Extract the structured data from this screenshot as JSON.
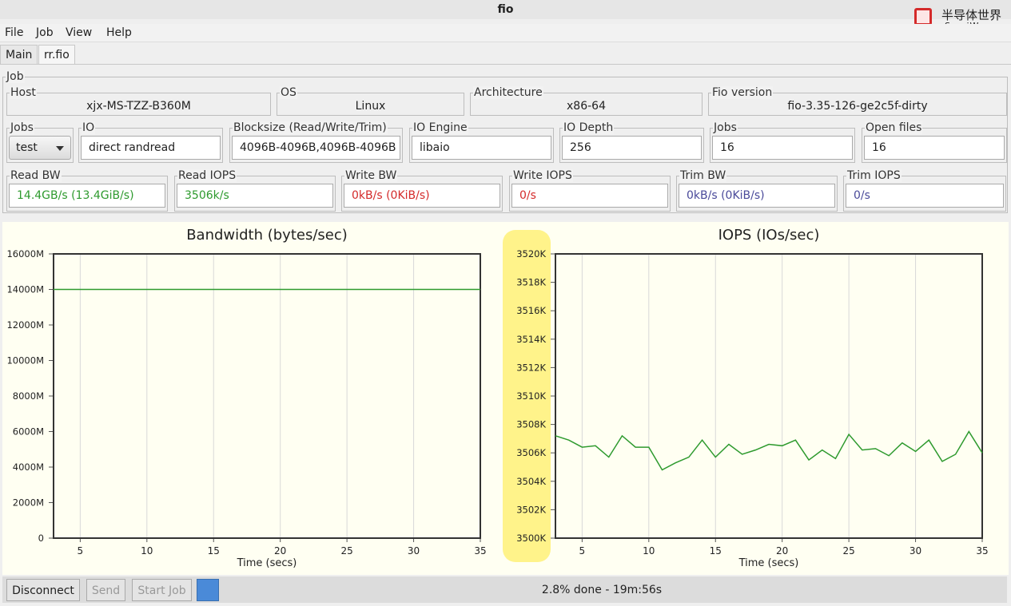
{
  "window": {
    "title": "fio"
  },
  "watermark": {
    "name": "半导体世界",
    "site": "SemiW.com"
  },
  "menu": [
    "File",
    "Job",
    "View",
    "Help"
  ],
  "tabs": [
    "Main",
    "rr.fio"
  ],
  "job": {
    "title": "Job",
    "rows": [
      [
        {
          "label": "Host",
          "value": "xjx-MS-TZZ-B360M"
        },
        {
          "label": "OS",
          "value": "Linux"
        },
        {
          "label": "Architecture",
          "value": "x86-64"
        },
        {
          "label": "Fio version",
          "value": "fio-3.35-126-ge2c5f-dirty"
        }
      ],
      [
        {
          "label": "Jobs",
          "value": "test",
          "control": "combo"
        },
        {
          "label": "IO",
          "value": "direct randread"
        },
        {
          "label": "Blocksize (Read/Write/Trim)",
          "value": "4096B-4096B,4096B-4096B"
        },
        {
          "label": "IO Engine",
          "value": "libaio"
        },
        {
          "label": "IO Depth",
          "value": "256"
        },
        {
          "label": "Jobs",
          "value": "16"
        },
        {
          "label": "Open files",
          "value": "16"
        }
      ],
      [
        {
          "label": "Read BW",
          "value": "14.4GB/s (13.4GiB/s)",
          "color": "#2e9a2e"
        },
        {
          "label": "Read IOPS",
          "value": "3506k/s",
          "color": "#2e9a2e"
        },
        {
          "label": "Write BW",
          "value": "0kB/s (0KiB/s)",
          "color": "#d42a2a"
        },
        {
          "label": "Write IOPS",
          "value": "0/s",
          "color": "#d42a2a"
        },
        {
          "label": "Trim BW",
          "value": "0kB/s (0KiB/s)",
          "color": "#4a4a9a"
        },
        {
          "label": "Trim IOPS",
          "value": "0/s",
          "color": "#4a4a9a"
        }
      ]
    ]
  },
  "chart_data": [
    {
      "type": "line",
      "title": "Bandwidth (bytes/sec)",
      "x_label": "Time (secs)",
      "color": "#2e9a2e",
      "grid": "x",
      "x": [
        3,
        4,
        5,
        6,
        7,
        8,
        9,
        10,
        11,
        12,
        13,
        14,
        15,
        16,
        17,
        18,
        19,
        20,
        21,
        22,
        23,
        24,
        25,
        26,
        27,
        28,
        29,
        30,
        31,
        32,
        33,
        34,
        35
      ],
      "values": [
        14000,
        14000,
        14000,
        14000,
        14000,
        14000,
        14000,
        14000,
        14000,
        14000,
        14000,
        14000,
        14000,
        14000,
        14000,
        14000,
        14000,
        14000,
        14000,
        14000,
        14000,
        14000,
        14000,
        14000,
        14000,
        14000,
        14000,
        14000,
        14000,
        14000,
        14000,
        14000,
        14000
      ],
      "xlim": [
        3,
        35
      ],
      "xticks": [
        5,
        10,
        15,
        20,
        25,
        30,
        35
      ],
      "ylim": [
        0,
        16000
      ],
      "yticks": [
        0,
        {
          "value": 2000,
          "label": "2000M"
        },
        {
          "value": 4000,
          "label": "4000M"
        },
        {
          "value": 6000,
          "label": "6000M"
        },
        {
          "value": 8000,
          "label": "8000M"
        },
        {
          "value": 10000,
          "label": "10000M"
        },
        {
          "value": 12000,
          "label": "12000M"
        },
        {
          "value": 14000,
          "label": "14000M"
        },
        {
          "value": 16000,
          "label": "16000M"
        }
      ]
    },
    {
      "type": "line",
      "title": "IOPS (IOs/sec)",
      "x_label": "Time (secs)",
      "color": "#2e9a2e",
      "grid": "x",
      "highlight_yticks": "#fff38a",
      "x": [
        3,
        4,
        5,
        6,
        7,
        8,
        9,
        10,
        11,
        12,
        13,
        14,
        15,
        16,
        17,
        18,
        19,
        20,
        21,
        22,
        23,
        24,
        25,
        26,
        27,
        28,
        29,
        30,
        31,
        32,
        33,
        34,
        35
      ],
      "values": [
        3507.2,
        3506.9,
        3506.4,
        3506.5,
        3505.7,
        3507.2,
        3506.4,
        3506.4,
        3504.8,
        3505.3,
        3505.7,
        3506.9,
        3505.7,
        3506.6,
        3505.9,
        3506.2,
        3506.6,
        3506.5,
        3506.9,
        3505.5,
        3506.2,
        3505.6,
        3507.3,
        3506.2,
        3506.3,
        3505.8,
        3506.7,
        3506.1,
        3506.9,
        3505.4,
        3505.9,
        3507.5,
        3506.0
      ],
      "xlim": [
        3,
        35
      ],
      "xticks": [
        5,
        10,
        15,
        20,
        25,
        30,
        35
      ],
      "ylim": [
        3500,
        3520
      ],
      "yticks": [
        {
          "value": 3500,
          "label": "3500K"
        },
        {
          "value": 3502,
          "label": "3502K"
        },
        {
          "value": 3504,
          "label": "3504K"
        },
        {
          "value": 3506,
          "label": "3506K"
        },
        {
          "value": 3508,
          "label": "3508K"
        },
        {
          "value": 3510,
          "label": "3510K"
        },
        {
          "value": 3512,
          "label": "3512K"
        },
        {
          "value": 3514,
          "label": "3514K"
        },
        {
          "value": 3516,
          "label": "3516K"
        },
        {
          "value": 3518,
          "label": "3518K"
        },
        {
          "value": 3520,
          "label": "3520K"
        }
      ]
    }
  ],
  "footer": {
    "buttons": [
      {
        "label": "Disconnect",
        "enabled": true
      },
      {
        "label": "Send",
        "enabled": false
      },
      {
        "label": "Start Job",
        "enabled": false
      }
    ],
    "status": "2.8% done - 19m:56s"
  }
}
